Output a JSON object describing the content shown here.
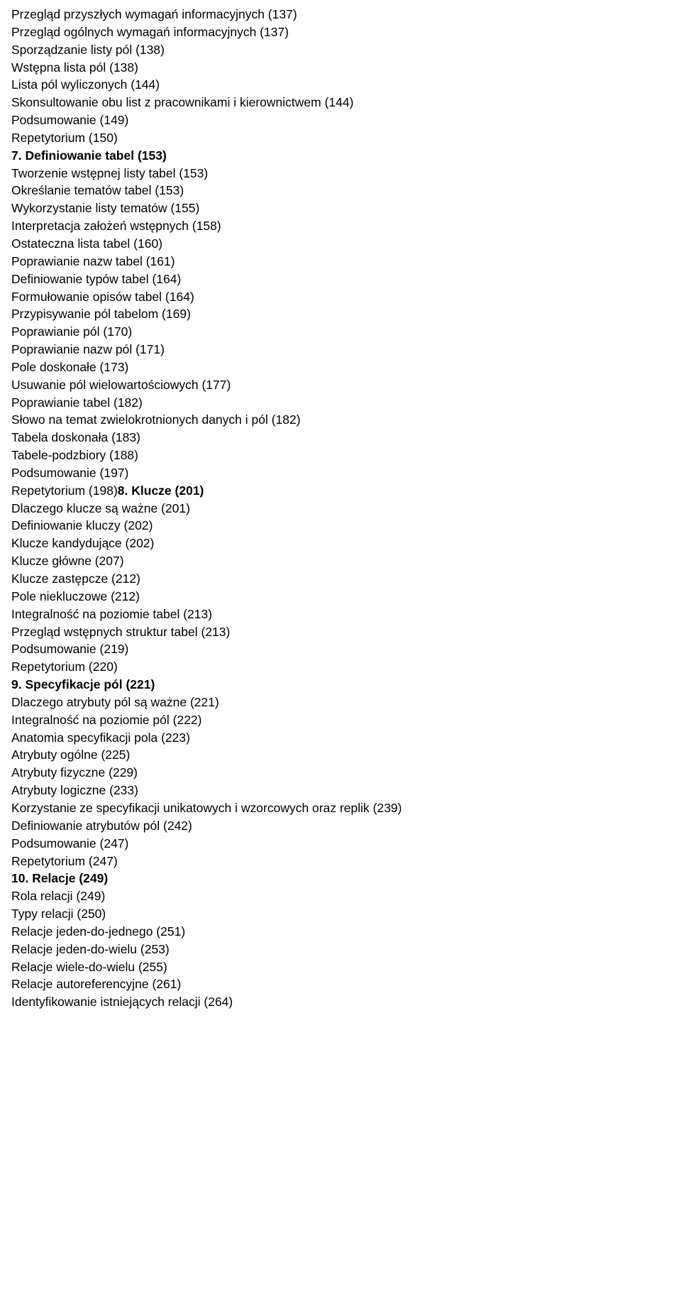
{
  "lines": [
    {
      "text": "Przegląd przyszłych wymagań informacyjnych (137)",
      "bold": false
    },
    {
      "text": "Przegląd ogólnych wymagań informacyjnych (137)",
      "bold": false
    },
    {
      "text": "Sporządzanie listy pól (138)",
      "bold": false
    },
    {
      "text": "Wstępna lista pól (138)",
      "bold": false
    },
    {
      "text": "Lista pól wyliczonych (144)",
      "bold": false
    },
    {
      "text": "Skonsultowanie obu list z pracownikami i kierownictwem (144)",
      "bold": false
    },
    {
      "text": "Podsumowanie (149)",
      "bold": false
    },
    {
      "text": "Repetytorium (150)",
      "bold": false
    },
    {
      "text": "7. Definiowanie tabel (153)",
      "bold": true
    },
    {
      "text": "Tworzenie wstępnej listy tabel (153)",
      "bold": false
    },
    {
      "text": "Określanie tematów tabel (153)",
      "bold": false
    },
    {
      "text": "Wykorzystanie listy tematów (155)",
      "bold": false
    },
    {
      "text": "Interpretacja założeń wstępnych (158)",
      "bold": false
    },
    {
      "text": "Ostateczna lista tabel (160)",
      "bold": false
    },
    {
      "text": "Poprawianie nazw tabel (161)",
      "bold": false
    },
    {
      "text": "Definiowanie typów tabel (164)",
      "bold": false
    },
    {
      "text": "Formułowanie opisów tabel (164)",
      "bold": false
    },
    {
      "text": "Przypisywanie pól tabelom (169)",
      "bold": false
    },
    {
      "text": "Poprawianie pól (170)",
      "bold": false
    },
    {
      "text": "Poprawianie nazw pól (171)",
      "bold": false
    },
    {
      "text": "Pole doskonałe (173)",
      "bold": false
    },
    {
      "text": "Usuwanie pól wielowartościowych (177)",
      "bold": false
    },
    {
      "text": "Poprawianie tabel (182)",
      "bold": false
    },
    {
      "text": "Słowo na temat zwielokrotnionych danych i pól (182)",
      "bold": false
    },
    {
      "text": "Tabela doskonała (183)",
      "bold": false
    },
    {
      "text": "Tabele-podzbiory (188)",
      "bold": false
    },
    {
      "text": "Podsumowanie (197)",
      "bold": false
    },
    {
      "text": "Repetytorium (198)",
      "bold": false,
      "inline_bold_after": "8. Klucze (201)"
    },
    {
      "text": "Dlaczego klucze są ważne (201)",
      "bold": false
    },
    {
      "text": "Definiowanie kluczy (202)",
      "bold": false
    },
    {
      "text": "Klucze kandydujące (202)",
      "bold": false
    },
    {
      "text": "Klucze główne (207)",
      "bold": false
    },
    {
      "text": "Klucze zastępcze (212)",
      "bold": false
    },
    {
      "text": "Pole niekluczowe (212)",
      "bold": false
    },
    {
      "text": "Integralność na poziomie tabel (213)",
      "bold": false
    },
    {
      "text": "Przegląd wstępnych struktur tabel (213)",
      "bold": false
    },
    {
      "text": "Podsumowanie (219)",
      "bold": false
    },
    {
      "text": "Repetytorium (220)",
      "bold": false
    },
    {
      "text": "9. Specyfikacje pól (221)",
      "bold": true
    },
    {
      "text": "Dlaczego atrybuty pól są ważne (221)",
      "bold": false
    },
    {
      "text": "Integralność na poziomie pól (222)",
      "bold": false
    },
    {
      "text": "Anatomia specyfikacji pola (223)",
      "bold": false
    },
    {
      "text": "Atrybuty ogólne (225)",
      "bold": false
    },
    {
      "text": "Atrybuty fizyczne (229)",
      "bold": false
    },
    {
      "text": "Atrybuty logiczne (233)",
      "bold": false
    },
    {
      "text": "Korzystanie ze specyfikacji unikatowych i wzorcowych oraz replik (239)",
      "bold": false
    },
    {
      "text": "Definiowanie atrybutów pól (242)",
      "bold": false
    },
    {
      "text": "Podsumowanie (247)",
      "bold": false
    },
    {
      "text": "Repetytorium (247)",
      "bold": false
    },
    {
      "text": "10. Relacje (249)",
      "bold": true
    },
    {
      "text": "Rola relacji (249)",
      "bold": false
    },
    {
      "text": "Typy relacji (250)",
      "bold": false
    },
    {
      "text": "Relacje jeden-do-jednego (251)",
      "bold": false
    },
    {
      "text": "Relacje jeden-do-wielu (253)",
      "bold": false
    },
    {
      "text": "Relacje wiele-do-wielu (255)",
      "bold": false
    },
    {
      "text": "Relacje autoreferencyjne (261)",
      "bold": false
    },
    {
      "text": "Identyfikowanie istniejących relacji (264)",
      "bold": false
    }
  ]
}
